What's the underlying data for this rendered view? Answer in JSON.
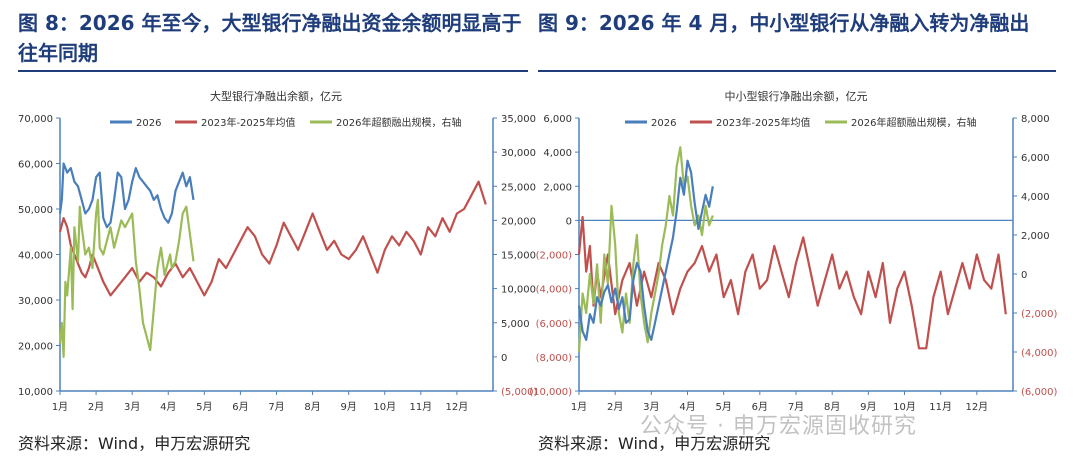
{
  "left_panel": {
    "title": "图 8：2026 年至今，大型银行净融出资金余额明显高于往年同期",
    "source": "资料来源：Wind，申万宏源研究"
  },
  "right_panel": {
    "title": "图 9：2026 年 4 月，中小型银行从净融入转为净融出",
    "source": "资料来源：Wind，申万宏源研究"
  },
  "watermark": "公众号 · 申万宏源固收研究",
  "colors": {
    "blue": "#4a7ebb",
    "red": "#c0504d",
    "green": "#9bbb59",
    "title": "#1f3d7a",
    "axis": "#4f81bd",
    "neg": "#c0504d"
  },
  "chart_data": [
    {
      "type": "line",
      "title": "大型银行净融出余额，亿元",
      "categories": [
        "1月",
        "2月",
        "3月",
        "4月",
        "5月",
        "6月",
        "7月",
        "8月",
        "9月",
        "10月",
        "11月",
        "12月"
      ],
      "ylim": [
        10000,
        70000
      ],
      "yticks": [
        "10,000",
        "20,000",
        "30,000",
        "40,000",
        "50,000",
        "60,000",
        "70,000"
      ],
      "y2lim": [
        -5000,
        35000
      ],
      "y2ticks": [
        "(5,000)",
        "0",
        "5,000",
        "10,000",
        "15,000",
        "20,000",
        "25,000",
        "30,000",
        "35,000"
      ],
      "legend": "top",
      "series": [
        {
          "name": "2026",
          "axis": "left",
          "color": "blue",
          "x": [
            0.0,
            0.05,
            0.1,
            0.2,
            0.3,
            0.4,
            0.5,
            0.6,
            0.7,
            0.8,
            0.9,
            1.0,
            1.1,
            1.2,
            1.3,
            1.4,
            1.5,
            1.6,
            1.7,
            1.8,
            1.9,
            2.0,
            2.1,
            2.2,
            2.3,
            2.4,
            2.5,
            2.6,
            2.7,
            2.8,
            2.9,
            3.0,
            3.1,
            3.2,
            3.3,
            3.4,
            3.5,
            3.6,
            3.7
          ],
          "values": [
            49000,
            52000,
            60000,
            58000,
            59000,
            56000,
            55000,
            52000,
            49000,
            50000,
            52000,
            57000,
            58000,
            48000,
            46000,
            47000,
            52000,
            58000,
            57000,
            50000,
            52000,
            56000,
            59000,
            57000,
            56000,
            55000,
            54000,
            52000,
            53000,
            50000,
            48000,
            47000,
            49000,
            54000,
            56000,
            58000,
            55000,
            57000,
            52000
          ]
        },
        {
          "name": "2023年-2025年均值",
          "axis": "left",
          "color": "red",
          "x": [
            0.0,
            0.1,
            0.2,
            0.3,
            0.4,
            0.5,
            0.6,
            0.7,
            0.8,
            0.9,
            1.0,
            1.2,
            1.4,
            1.6,
            1.8,
            2.0,
            2.2,
            2.4,
            2.6,
            2.8,
            3.0,
            3.2,
            3.4,
            3.6,
            3.8,
            4.0,
            4.2,
            4.4,
            4.6,
            4.8,
            5.0,
            5.2,
            5.4,
            5.6,
            5.8,
            6.0,
            6.2,
            6.4,
            6.6,
            6.8,
            7.0,
            7.2,
            7.4,
            7.6,
            7.8,
            8.0,
            8.2,
            8.4,
            8.6,
            8.8,
            9.0,
            9.2,
            9.4,
            9.6,
            9.8,
            10.0,
            10.2,
            10.4,
            10.6,
            10.8,
            11.0,
            11.2,
            11.4,
            11.6,
            11.8
          ],
          "values": [
            45000,
            48000,
            46000,
            42000,
            40000,
            38000,
            36000,
            35000,
            37000,
            40000,
            38000,
            34000,
            31000,
            33000,
            35000,
            37000,
            34000,
            36000,
            35000,
            33000,
            36000,
            38000,
            35000,
            37000,
            34000,
            31000,
            34000,
            39000,
            37000,
            40000,
            43000,
            46000,
            44000,
            40000,
            38000,
            42000,
            47000,
            44000,
            41000,
            45000,
            49000,
            45000,
            41000,
            43000,
            40000,
            39000,
            41000,
            44000,
            40000,
            36000,
            41000,
            44000,
            42000,
            45000,
            43000,
            40000,
            46000,
            44000,
            48000,
            45000,
            49000,
            50000,
            53000,
            56000,
            51000
          ]
        },
        {
          "name": "2026年超额融出规模，右轴",
          "axis": "right",
          "color": "green",
          "x": [
            0.0,
            0.05,
            0.1,
            0.15,
            0.2,
            0.3,
            0.35,
            0.4,
            0.5,
            0.55,
            0.6,
            0.7,
            0.8,
            0.9,
            1.0,
            1.05,
            1.1,
            1.2,
            1.3,
            1.4,
            1.5,
            1.6,
            1.7,
            1.8,
            1.9,
            2.0,
            2.1,
            2.2,
            2.3,
            2.4,
            2.5,
            2.6,
            2.7,
            2.8,
            2.9,
            3.0,
            3.05,
            3.1,
            3.2,
            3.3,
            3.4,
            3.5,
            3.6,
            3.7
          ],
          "values": [
            2000,
            5000,
            0,
            11000,
            9000,
            16000,
            7000,
            19000,
            14000,
            22000,
            19000,
            15000,
            16000,
            13000,
            21000,
            23000,
            16000,
            15000,
            17000,
            19000,
            16000,
            18000,
            20000,
            19000,
            20000,
            21000,
            14000,
            10000,
            5000,
            3000,
            1000,
            7000,
            13000,
            16000,
            12000,
            14000,
            15000,
            13000,
            14000,
            17000,
            21000,
            22000,
            18000,
            14000
          ]
        }
      ]
    },
    {
      "type": "line",
      "title": "中小型银行净融出余额，亿元",
      "categories": [
        "1月",
        "2月",
        "3月",
        "4月",
        "5月",
        "6月",
        "7月",
        "8月",
        "9月",
        "10月",
        "11月",
        "12月"
      ],
      "ylim": [
        -10000,
        6000
      ],
      "yticks": [
        "(10,000)",
        "(8,000)",
        "(6,000)",
        "(4,000)",
        "(2,000)",
        "0",
        "2,000",
        "4,000",
        "6,000"
      ],
      "y2lim": [
        -6000,
        8000
      ],
      "y2ticks": [
        "(6,000)",
        "(4,000)",
        "(2,000)",
        "0",
        "2,000",
        "4,000",
        "6,000",
        "8,000"
      ],
      "legend": "top",
      "series": [
        {
          "name": "2026",
          "axis": "left",
          "color": "blue",
          "x": [
            0.0,
            0.1,
            0.2,
            0.3,
            0.4,
            0.5,
            0.6,
            0.7,
            0.8,
            0.9,
            1.0,
            1.1,
            1.2,
            1.3,
            1.4,
            1.5,
            1.6,
            1.7,
            1.8,
            1.9,
            2.0,
            2.1,
            2.2,
            2.3,
            2.4,
            2.5,
            2.6,
            2.7,
            2.8,
            2.9,
            3.0,
            3.1,
            3.2,
            3.3,
            3.4,
            3.5,
            3.6,
            3.7
          ],
          "values": [
            -5000,
            -6500,
            -7000,
            -5500,
            -6000,
            -4500,
            -5000,
            -4200,
            -3800,
            -4800,
            -4000,
            -5200,
            -4500,
            -6000,
            -5800,
            -3500,
            -2500,
            -3000,
            -5000,
            -6500,
            -7000,
            -6000,
            -5000,
            -4000,
            -3000,
            -2000,
            -1000,
            500,
            2500,
            1500,
            3500,
            2800,
            1000,
            -500,
            500,
            1500,
            800,
            2000
          ]
        },
        {
          "name": "2023年-2025年均值",
          "axis": "left",
          "color": "red",
          "x": [
            0.0,
            0.1,
            0.2,
            0.3,
            0.4,
            0.5,
            0.6,
            0.8,
            1.0,
            1.2,
            1.4,
            1.6,
            1.8,
            2.0,
            2.2,
            2.4,
            2.6,
            2.8,
            3.0,
            3.2,
            3.4,
            3.6,
            3.8,
            4.0,
            4.2,
            4.4,
            4.6,
            4.8,
            5.0,
            5.2,
            5.4,
            5.6,
            5.8,
            6.0,
            6.2,
            6.4,
            6.6,
            6.8,
            7.0,
            7.2,
            7.4,
            7.6,
            7.8,
            8.0,
            8.2,
            8.4,
            8.6,
            8.8,
            9.0,
            9.2,
            9.4,
            9.6,
            9.8,
            10.0,
            10.2,
            10.4,
            10.6,
            10.8,
            11.0,
            11.2,
            11.4,
            11.6,
            11.8
          ],
          "values": [
            -2000,
            200,
            -3000,
            -1500,
            -5000,
            -3000,
            -4500,
            -2000,
            -5500,
            -3500,
            -2500,
            -5000,
            -3000,
            -4500,
            -2500,
            -3500,
            -5500,
            -4000,
            -3000,
            -2500,
            -1500,
            -3000,
            -2000,
            -4500,
            -3500,
            -5500,
            -3000,
            -2000,
            -4000,
            -3500,
            -1500,
            -3000,
            -4500,
            -2500,
            -1000,
            -3000,
            -5000,
            -3500,
            -2000,
            -4000,
            -3000,
            -4500,
            -5500,
            -3000,
            -4500,
            -2500,
            -6000,
            -4000,
            -3000,
            -5000,
            -7500,
            -7500,
            -4500,
            -3000,
            -5500,
            -4000,
            -2500,
            -4000,
            -2000,
            -3500,
            -4000,
            -2000,
            -5500
          ]
        },
        {
          "name": "2026年超额融出规模，右轴",
          "axis": "right",
          "color": "green",
          "x": [
            0.0,
            0.1,
            0.2,
            0.3,
            0.4,
            0.5,
            0.6,
            0.7,
            0.8,
            0.9,
            1.0,
            1.1,
            1.2,
            1.3,
            1.4,
            1.5,
            1.6,
            1.7,
            1.8,
            1.9,
            2.0,
            2.1,
            2.2,
            2.3,
            2.4,
            2.5,
            2.6,
            2.7,
            2.8,
            2.9,
            3.0,
            3.1,
            3.2,
            3.3,
            3.4,
            3.5,
            3.6,
            3.7
          ],
          "values": [
            -4000,
            -1000,
            -2000,
            0,
            -1500,
            500,
            -2500,
            1000,
            -500,
            3500,
            1500,
            -2000,
            -3000,
            -1000,
            -2500,
            500,
            2000,
            -1000,
            -2500,
            -3500,
            -2000,
            -1000,
            0,
            1500,
            2500,
            4000,
            3000,
            5500,
            6500,
            4500,
            5000,
            3500,
            2500,
            3000,
            2000,
            3500,
            2500,
            3000
          ]
        }
      ]
    }
  ]
}
